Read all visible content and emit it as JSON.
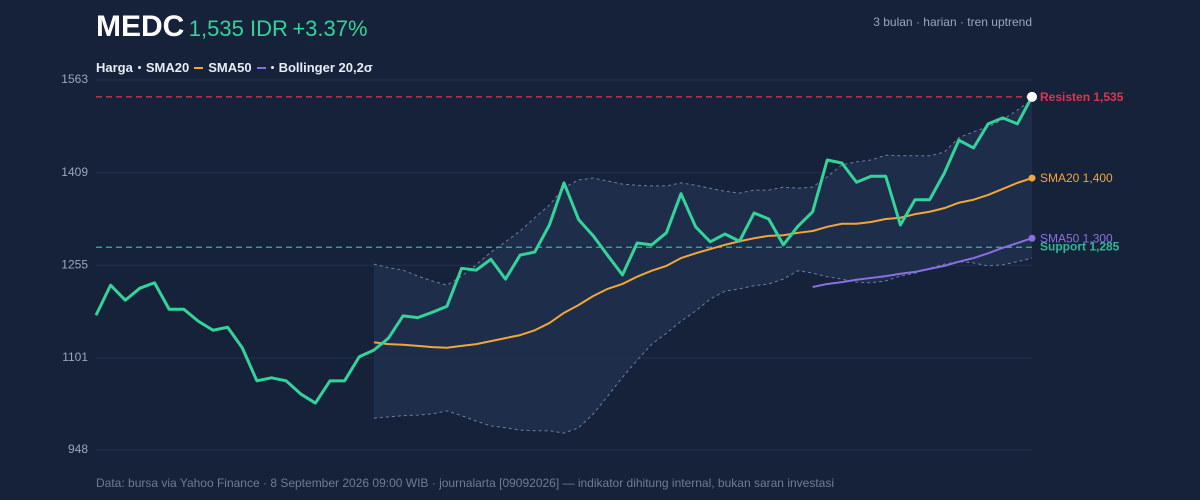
{
  "chart_data": {
    "type": "line",
    "title": "MEDC",
    "price_label": "1,535 IDR",
    "change_label": "+3.37%",
    "subtitle": "3 bulan · harian · tren uptrend",
    "source": "Data: bursa via Yahoo Finance · 8 September 2026 09:00 WIB · journalarta [09092026] — indikator dihitung internal, bukan saran investasi",
    "ylim": [
      948,
      1563
    ],
    "yticks": [
      948,
      1101,
      1255,
      1409,
      1563
    ],
    "grid": true,
    "series": [
      {
        "name": "Harga",
        "color": "#34d399",
        "values": [
          1172,
          1222,
          1197,
          1217,
          1226,
          1182,
          1182,
          1162,
          1147,
          1152,
          1118,
          1063,
          1068,
          1063,
          1041,
          1026,
          1063,
          1063,
          1103,
          1114,
          1134,
          1171,
          1168,
          1177,
          1187,
          1250,
          1247,
          1265,
          1232,
          1272,
          1277,
          1322,
          1392,
          1331,
          1304,
          1271,
          1239,
          1292,
          1289,
          1309,
          1374,
          1319,
          1294,
          1307,
          1295,
          1342,
          1332,
          1289,
          1320,
          1344,
          1430,
          1425,
          1393,
          1403,
          1403,
          1322,
          1364,
          1364,
          1408,
          1463,
          1450,
          1490,
          1500,
          1490,
          1535
        ],
        "end_dot": "#ffffff",
        "end_label": "Resisten 1,535",
        "end_label_color": "#e0344f"
      },
      {
        "name": "SMA20",
        "color": "#f0a73a",
        "values": [
          null,
          null,
          null,
          null,
          null,
          null,
          null,
          null,
          null,
          null,
          null,
          null,
          null,
          null,
          null,
          null,
          null,
          null,
          null,
          1127,
          1124,
          1123,
          1121,
          1119,
          1118,
          1121,
          1124,
          1129,
          1134,
          1139,
          1147,
          1159,
          1176,
          1189,
          1204,
          1216,
          1224,
          1236,
          1246,
          1254,
          1267,
          1275,
          1282,
          1289,
          1295,
          1300,
          1304,
          1305,
          1309,
          1312,
          1319,
          1324,
          1324,
          1327,
          1332,
          1334,
          1340,
          1344,
          1350,
          1359,
          1364,
          1372,
          1382,
          1392,
          1400
        ],
        "end_dot": "#f0a73a",
        "end_label": "SMA20 1,400",
        "end_label_color": "#f0a73a"
      },
      {
        "name": "SMA50",
        "color": "#8b6fe0",
        "values": [
          null,
          null,
          null,
          null,
          null,
          null,
          null,
          null,
          null,
          null,
          null,
          null,
          null,
          null,
          null,
          null,
          null,
          null,
          null,
          null,
          null,
          null,
          null,
          null,
          null,
          null,
          null,
          null,
          null,
          null,
          null,
          null,
          null,
          null,
          null,
          null,
          null,
          null,
          null,
          null,
          null,
          null,
          null,
          null,
          null,
          null,
          null,
          null,
          null,
          1219,
          1224,
          1227,
          1231,
          1234,
          1237,
          1241,
          1244,
          1249,
          1254,
          1261,
          1267,
          1275,
          1284,
          1292,
          1300
        ],
        "end_dot": "#8b6fe0",
        "end_label": "SMA50 1,300",
        "end_label_color": "#8b6fe0"
      }
    ],
    "band": {
      "name": "Bollinger 20,2σ",
      "color": "#6b7fa3",
      "fill": "#1f2f4d",
      "upper": [
        null,
        null,
        null,
        null,
        null,
        null,
        null,
        null,
        null,
        null,
        null,
        null,
        null,
        null,
        null,
        null,
        null,
        null,
        null,
        1257,
        1251,
        1247,
        1237,
        1229,
        1222,
        1237,
        1256,
        1277,
        1294,
        1312,
        1334,
        1355,
        1384,
        1397,
        1400,
        1395,
        1390,
        1388,
        1387,
        1387,
        1392,
        1388,
        1383,
        1378,
        1375,
        1380,
        1380,
        1385,
        1383,
        1385,
        1402,
        1422,
        1427,
        1430,
        1438,
        1437,
        1437,
        1437,
        1443,
        1467,
        1477,
        1485,
        1497,
        1513,
        1530
      ],
      "lower": [
        null,
        null,
        null,
        null,
        null,
        null,
        null,
        null,
        null,
        null,
        null,
        null,
        null,
        null,
        null,
        null,
        null,
        null,
        null,
        1001,
        1003,
        1005,
        1006,
        1008,
        1013,
        1005,
        996,
        988,
        985,
        981,
        980,
        980,
        976,
        985,
        1008,
        1038,
        1069,
        1097,
        1124,
        1142,
        1162,
        1179,
        1199,
        1212,
        1216,
        1221,
        1224,
        1232,
        1246,
        1242,
        1236,
        1232,
        1227,
        1226,
        1229,
        1237,
        1242,
        1250,
        1257,
        1261,
        1259,
        1254,
        1256,
        1261,
        1267
      ]
    },
    "reference_lines": [
      {
        "label": "Resisten 1,535",
        "value": 1535,
        "color": "#e0344f"
      },
      {
        "label": "Support 1,285",
        "value": 1285,
        "color": "#2fb898"
      }
    ]
  }
}
